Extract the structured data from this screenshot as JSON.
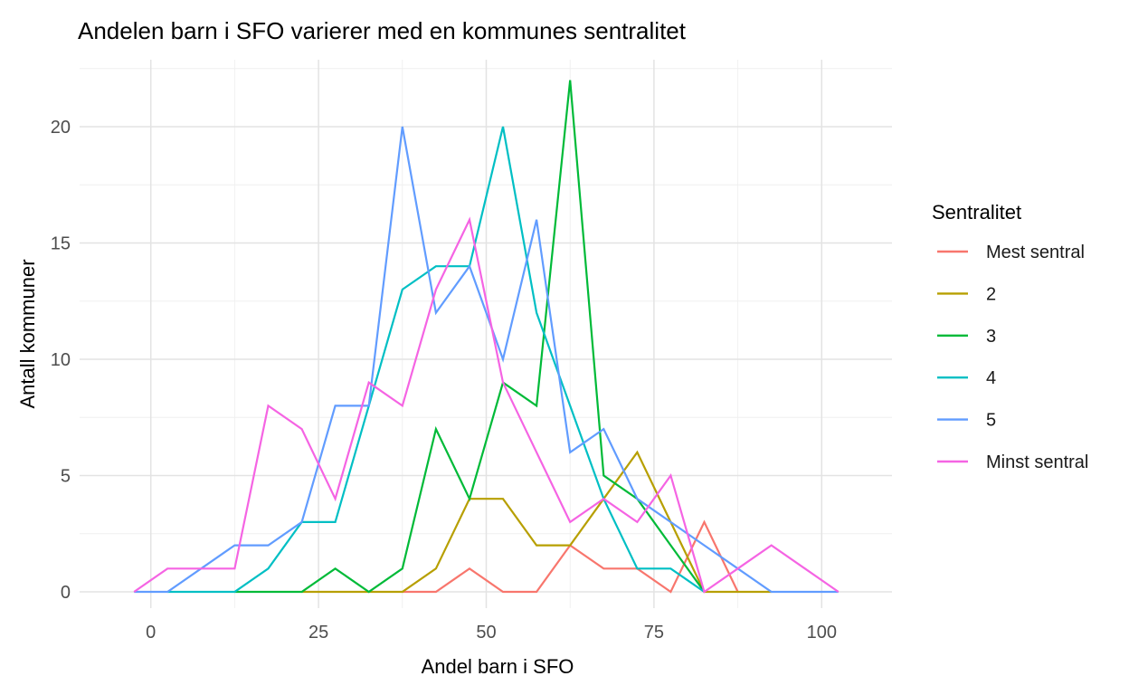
{
  "figure": {
    "title": "Andelen barn i SFO varierer med en kommunes sentralitet"
  },
  "colors": {
    "background": "#FFFFFF",
    "grid_major": "#E3E3E3",
    "grid_minor": "#EFEFEF",
    "tick_label": "#4D4D4D",
    "text": "#000000"
  },
  "chart_data": {
    "type": "line",
    "subtype": "frequency-polygon",
    "title": "Andelen barn i SFO varierer med en kommunes sentralitet",
    "xlabel": "Andel barn i SFO",
    "ylabel": "Antall kommuner",
    "legend_title": "Sentralitet",
    "legend_position": "right",
    "grid": true,
    "bin_width": 5,
    "x_ticks": [
      0,
      25,
      50,
      75,
      100
    ],
    "x_minor_ticks": [
      12.5,
      37.5,
      62.5,
      87.5
    ],
    "y_ticks": [
      0,
      5,
      10,
      15,
      20
    ],
    "y_minor_ticks": [
      2.5,
      7.5,
      12.5,
      17.5,
      22.5
    ],
    "xlim": [
      -10.5,
      110.5
    ],
    "ylim": [
      -0.7,
      22.9
    ],
    "series": [
      {
        "name": "Mest sentral",
        "color": "#F8766D",
        "points": [
          [
            37.5,
            0
          ],
          [
            42.5,
            0
          ],
          [
            47.5,
            1
          ],
          [
            52.5,
            0
          ],
          [
            57.5,
            0
          ],
          [
            62.5,
            2
          ],
          [
            67.5,
            1
          ],
          [
            72.5,
            1
          ],
          [
            77.5,
            0
          ],
          [
            82.5,
            3
          ],
          [
            87.5,
            0
          ]
        ]
      },
      {
        "name": "2",
        "color": "#B79F00",
        "points": [
          [
            22.5,
            0
          ],
          [
            27.5,
            0
          ],
          [
            32.5,
            0
          ],
          [
            37.5,
            0
          ],
          [
            42.5,
            1
          ],
          [
            47.5,
            4
          ],
          [
            52.5,
            4
          ],
          [
            57.5,
            2
          ],
          [
            62.5,
            2
          ],
          [
            67.5,
            4
          ],
          [
            72.5,
            6
          ],
          [
            77.5,
            3
          ],
          [
            82.5,
            0
          ],
          [
            87.5,
            0
          ],
          [
            92.5,
            0
          ]
        ]
      },
      {
        "name": "3",
        "color": "#00BA38",
        "points": [
          [
            12.5,
            0
          ],
          [
            17.5,
            0
          ],
          [
            22.5,
            0
          ],
          [
            27.5,
            1
          ],
          [
            32.5,
            0
          ],
          [
            37.5,
            1
          ],
          [
            42.5,
            7
          ],
          [
            47.5,
            4
          ],
          [
            52.5,
            9
          ],
          [
            57.5,
            8
          ],
          [
            62.5,
            22
          ],
          [
            67.5,
            5
          ],
          [
            72.5,
            4
          ],
          [
            77.5,
            2
          ],
          [
            82.5,
            0
          ]
        ]
      },
      {
        "name": "4",
        "color": "#00BFC4",
        "points": [
          [
            2.5,
            0
          ],
          [
            7.5,
            0
          ],
          [
            12.5,
            0
          ],
          [
            17.5,
            1
          ],
          [
            22.5,
            3
          ],
          [
            27.5,
            3
          ],
          [
            32.5,
            8
          ],
          [
            37.5,
            13
          ],
          [
            42.5,
            14
          ],
          [
            47.5,
            14
          ],
          [
            52.5,
            20
          ],
          [
            57.5,
            12
          ],
          [
            62.5,
            8
          ],
          [
            67.5,
            4
          ],
          [
            72.5,
            1
          ],
          [
            77.5,
            1
          ],
          [
            82.5,
            0
          ]
        ]
      },
      {
        "name": "5",
        "color": "#619CFF",
        "points": [
          [
            -2.5,
            0
          ],
          [
            2.5,
            0
          ],
          [
            7.5,
            1
          ],
          [
            12.5,
            2
          ],
          [
            17.5,
            2
          ],
          [
            22.5,
            3
          ],
          [
            27.5,
            8
          ],
          [
            32.5,
            8
          ],
          [
            37.5,
            20
          ],
          [
            42.5,
            12
          ],
          [
            47.5,
            14
          ],
          [
            52.5,
            10
          ],
          [
            57.5,
            16
          ],
          [
            62.5,
            6
          ],
          [
            67.5,
            7
          ],
          [
            72.5,
            4
          ],
          [
            77.5,
            3
          ],
          [
            82.5,
            2
          ],
          [
            87.5,
            1
          ],
          [
            92.5,
            0
          ],
          [
            97.5,
            0
          ],
          [
            102.5,
            0
          ]
        ]
      },
      {
        "name": "Minst sentral",
        "color": "#F564E3",
        "points": [
          [
            -2.5,
            0
          ],
          [
            2.5,
            1
          ],
          [
            7.5,
            1
          ],
          [
            12.5,
            1
          ],
          [
            17.5,
            8
          ],
          [
            22.5,
            7
          ],
          [
            27.5,
            4
          ],
          [
            32.5,
            9
          ],
          [
            37.5,
            8
          ],
          [
            42.5,
            13
          ],
          [
            47.5,
            16
          ],
          [
            52.5,
            9
          ],
          [
            57.5,
            6
          ],
          [
            62.5,
            3
          ],
          [
            67.5,
            4
          ],
          [
            72.5,
            3
          ],
          [
            77.5,
            5
          ],
          [
            82.5,
            0
          ],
          [
            87.5,
            1
          ],
          [
            92.5,
            2
          ],
          [
            97.5,
            1
          ],
          [
            102.5,
            0
          ]
        ]
      }
    ]
  }
}
